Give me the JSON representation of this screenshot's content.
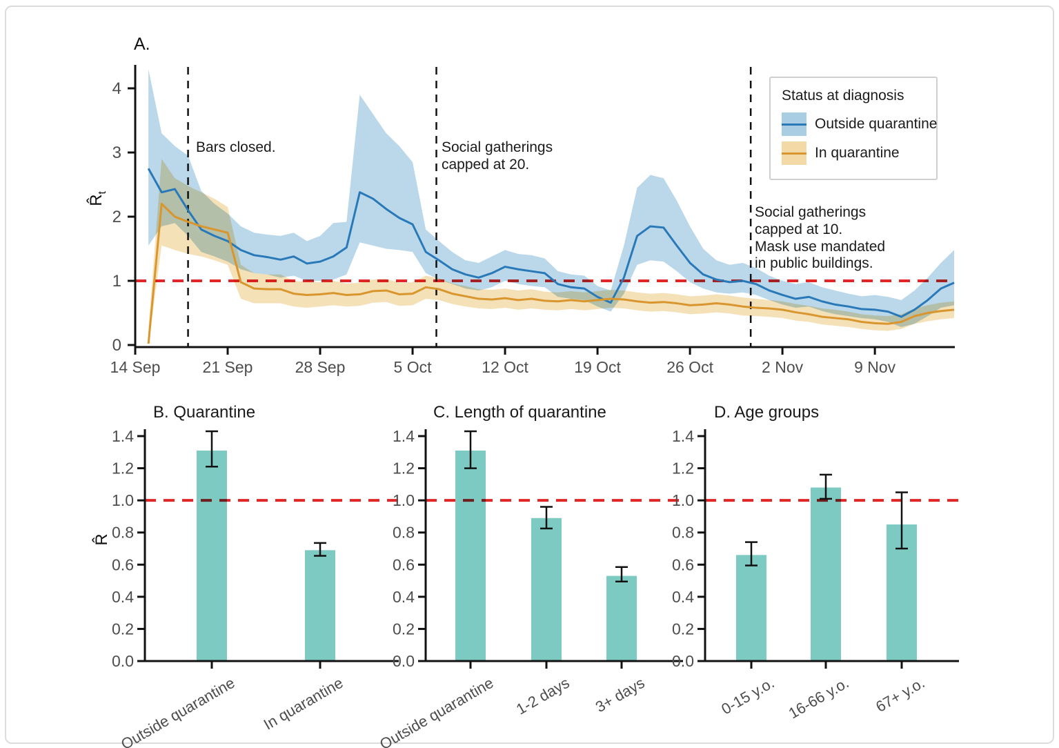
{
  "figure": {
    "panel_a_label": "A.",
    "ylabel_a_base": "R̂",
    "ylabel_a_sub": "t",
    "ylabel_bars": "R̂"
  },
  "colors": {
    "outside_line": "#2979b9",
    "outside_band": "#a9cee3",
    "in_line": "#d9952e",
    "in_band": "#f3d9a6",
    "reference_red": "#e02626",
    "bar_teal": "#7dcac3",
    "axis": "#111111",
    "tick_label": "#4d4d4d"
  },
  "chart_data": [
    {
      "id": "A",
      "type": "line",
      "panel_label": "A.",
      "ylabel": "R̂t",
      "xlim_days": [
        0,
        62
      ],
      "ylim": [
        0,
        4.35
      ],
      "x_start_date": "14 Sep",
      "x_tick_days": [
        0,
        7,
        14,
        21,
        28,
        35,
        42,
        49,
        56
      ],
      "x_tick_labels": [
        "14 Sep",
        "21 Sep",
        "28 Sep",
        "5 Oct",
        "12 Oct",
        "19 Oct",
        "26 Oct",
        "2 Nov",
        "9 Nov"
      ],
      "y_ticks": [
        0,
        1,
        2,
        3,
        4
      ],
      "reference_line_y": 1,
      "reference_color": "#e02626",
      "grid": false,
      "legend_position": "upper-right",
      "legend": {
        "title": "Status at diagnosis",
        "items": [
          {
            "label": "Outside quarantine",
            "line": "#2979b9",
            "band": "#a9cee3"
          },
          {
            "label": "In quarantine",
            "line": "#d9952e",
            "band": "#f3d9a6"
          }
        ]
      },
      "events": [
        {
          "day": 4.0,
          "label": "Bars closed."
        },
        {
          "day": 22.8,
          "label": "Social gatherings\ncapped at 20."
        },
        {
          "day": 46.6,
          "label": "Social gatherings\ncapped at 10.\nMask use mandated\nin public buildings."
        }
      ],
      "series": [
        {
          "name": "Outside quarantine",
          "color": "#2979b9",
          "band_color": "#a9cee3",
          "day_start": 1,
          "y": [
            2.75,
            2.38,
            2.43,
            2.1,
            1.8,
            1.7,
            1.62,
            1.48,
            1.4,
            1.37,
            1.33,
            1.38,
            1.27,
            1.3,
            1.38,
            1.52,
            2.38,
            2.28,
            2.12,
            1.98,
            1.88,
            1.45,
            1.32,
            1.18,
            1.1,
            1.05,
            1.12,
            1.22,
            1.18,
            1.15,
            1.12,
            0.95,
            0.9,
            0.88,
            0.75,
            0.66,
            1.05,
            1.7,
            1.85,
            1.83,
            1.55,
            1.28,
            1.1,
            1.02,
            0.98,
            1.0,
            0.95,
            0.85,
            0.78,
            0.72,
            0.75,
            0.68,
            0.63,
            0.6,
            0.56,
            0.55,
            0.52,
            0.44,
            0.55,
            0.7,
            0.88,
            0.97
          ],
          "lo": [
            1.55,
            1.85,
            1.9,
            1.7,
            1.45,
            1.38,
            1.3,
            1.18,
            1.12,
            1.1,
            1.05,
            1.08,
            1.0,
            1.0,
            1.02,
            1.1,
            1.6,
            1.55,
            1.5,
            1.48,
            1.45,
            1.12,
            1.02,
            0.95,
            0.88,
            0.85,
            0.9,
            1.0,
            0.95,
            0.92,
            0.9,
            0.75,
            0.72,
            0.7,
            0.6,
            0.52,
            0.8,
            1.25,
            1.32,
            1.3,
            1.15,
            0.98,
            0.88,
            0.82,
            0.8,
            0.82,
            0.78,
            0.7,
            0.63,
            0.58,
            0.6,
            0.53,
            0.48,
            0.45,
            0.42,
            0.4,
            0.36,
            0.28,
            0.33,
            0.45,
            0.58,
            0.62
          ],
          "hi": [
            4.3,
            3.3,
            3.1,
            2.95,
            2.4,
            2.2,
            2.05,
            1.85,
            1.75,
            1.72,
            1.7,
            1.75,
            1.62,
            1.7,
            1.9,
            1.92,
            3.9,
            3.6,
            3.3,
            3.1,
            2.85,
            1.8,
            1.62,
            1.45,
            1.32,
            1.28,
            1.38,
            1.48,
            1.42,
            1.4,
            1.35,
            1.15,
            1.1,
            1.08,
            0.92,
            0.85,
            1.55,
            2.45,
            2.65,
            2.6,
            2.25,
            1.85,
            1.5,
            1.32,
            1.25,
            1.28,
            1.2,
            1.08,
            1.0,
            0.95,
            0.98,
            0.9,
            0.85,
            0.8,
            0.76,
            0.78,
            0.75,
            0.7,
            0.85,
            1.05,
            1.28,
            1.48
          ]
        },
        {
          "name": "In quarantine",
          "color": "#d9952e",
          "band_color": "#f3d9a6",
          "day_start": 1,
          "y": [
            0.02,
            2.2,
            2.0,
            1.92,
            1.85,
            1.8,
            1.75,
            0.98,
            0.88,
            0.87,
            0.87,
            0.8,
            0.78,
            0.79,
            0.81,
            0.78,
            0.79,
            0.84,
            0.85,
            0.79,
            0.8,
            0.9,
            0.87,
            0.8,
            0.76,
            0.72,
            0.71,
            0.73,
            0.7,
            0.72,
            0.69,
            0.68,
            0.7,
            0.68,
            0.7,
            0.72,
            0.71,
            0.68,
            0.66,
            0.67,
            0.65,
            0.62,
            0.63,
            0.65,
            0.63,
            0.6,
            0.58,
            0.57,
            0.55,
            0.51,
            0.48,
            0.44,
            0.42,
            0.4,
            0.36,
            0.34,
            0.33,
            0.36,
            0.45,
            0.5,
            0.53,
            0.55
          ],
          "lo": [
            0.0,
            1.55,
            1.48,
            1.42,
            1.38,
            1.32,
            1.25,
            0.72,
            0.65,
            0.65,
            0.65,
            0.6,
            0.58,
            0.6,
            0.62,
            0.6,
            0.61,
            0.66,
            0.67,
            0.61,
            0.62,
            0.72,
            0.7,
            0.64,
            0.6,
            0.57,
            0.56,
            0.58,
            0.55,
            0.57,
            0.55,
            0.54,
            0.56,
            0.54,
            0.56,
            0.58,
            0.57,
            0.54,
            0.52,
            0.53,
            0.51,
            0.48,
            0.49,
            0.51,
            0.49,
            0.46,
            0.45,
            0.44,
            0.42,
            0.38,
            0.36,
            0.32,
            0.3,
            0.28,
            0.25,
            0.23,
            0.22,
            0.25,
            0.33,
            0.37,
            0.4,
            0.42
          ],
          "hi": [
            0.25,
            2.9,
            2.6,
            2.48,
            2.38,
            2.28,
            2.15,
            1.25,
            1.12,
            1.1,
            1.1,
            1.0,
            0.98,
            0.98,
            1.0,
            0.96,
            0.97,
            1.02,
            1.03,
            0.97,
            0.98,
            1.08,
            1.04,
            0.96,
            0.92,
            0.87,
            0.86,
            0.88,
            0.85,
            0.87,
            0.83,
            0.82,
            0.84,
            0.82,
            0.84,
            0.86,
            0.85,
            0.82,
            0.8,
            0.81,
            0.79,
            0.76,
            0.77,
            0.79,
            0.77,
            0.74,
            0.72,
            0.7,
            0.68,
            0.64,
            0.61,
            0.57,
            0.55,
            0.52,
            0.48,
            0.46,
            0.45,
            0.48,
            0.57,
            0.62,
            0.66,
            0.68
          ]
        }
      ]
    },
    {
      "id": "B",
      "type": "bar",
      "title": "B. Quarantine",
      "ylabel": "R̂",
      "categories": [
        "Outside quarantine",
        "In quarantine"
      ],
      "values": [
        1.31,
        0.69
      ],
      "ci_low": [
        1.21,
        0.655
      ],
      "ci_high": [
        1.43,
        0.735
      ],
      "y_ticks": [
        0.0,
        0.2,
        0.4,
        0.6,
        0.8,
        1.0,
        1.2,
        1.4
      ],
      "ylim": [
        0,
        1.45
      ],
      "reference_line_y": 1.0,
      "reference_color": "#e02626",
      "bar_color": "#7dcac3",
      "grid": false
    },
    {
      "id": "C",
      "type": "bar",
      "title": "C. Length of quarantine",
      "ylabel": "R̂",
      "categories": [
        "Outside quarantine",
        "1-2 days",
        "3+ days"
      ],
      "values": [
        1.31,
        0.89,
        0.53
      ],
      "ci_low": [
        1.2,
        0.825,
        0.495
      ],
      "ci_high": [
        1.43,
        0.96,
        0.585
      ],
      "y_ticks": [
        0.0,
        0.2,
        0.4,
        0.6,
        0.8,
        1.0,
        1.2,
        1.4
      ],
      "ylim": [
        0,
        1.45
      ],
      "reference_line_y": 1.0,
      "reference_color": "#e02626",
      "bar_color": "#7dcac3",
      "grid": false
    },
    {
      "id": "D",
      "type": "bar",
      "title": "D. Age groups",
      "ylabel": "R̂",
      "categories": [
        "0-15 y.o.",
        "16-66 y.o.",
        "67+ y.o."
      ],
      "values": [
        0.66,
        1.08,
        0.85
      ],
      "ci_low": [
        0.595,
        1.01,
        0.7
      ],
      "ci_high": [
        0.74,
        1.16,
        1.05
      ],
      "y_ticks": [
        0.0,
        0.2,
        0.4,
        0.6,
        0.8,
        1.0,
        1.2,
        1.4
      ],
      "ylim": [
        0,
        1.45
      ],
      "reference_line_y": 1.0,
      "reference_color": "#e02626",
      "bar_color": "#7dcac3",
      "grid": false
    }
  ]
}
